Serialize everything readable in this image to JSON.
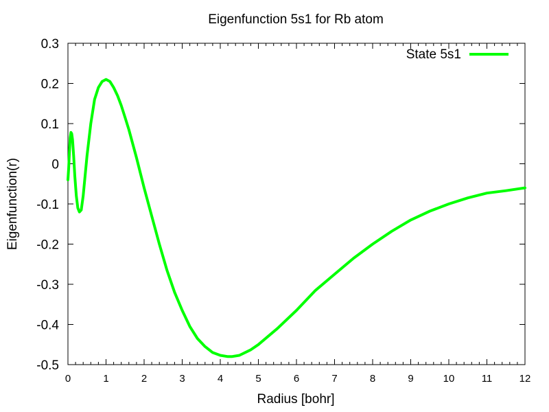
{
  "chart_data": {
    "type": "line",
    "title": "Eigenfunction 5s1 for Rb atom",
    "xlabel": "Radius [bohr]",
    "ylabel": "Eigenfunction(r)",
    "xlim": [
      0,
      12
    ],
    "ylim": [
      -0.5,
      0.3
    ],
    "xticks": [
      0,
      1,
      2,
      3,
      4,
      5,
      6,
      7,
      8,
      9,
      10,
      11,
      12
    ],
    "yticks": [
      -0.5,
      -0.4,
      -0.3,
      -0.2,
      -0.1,
      0,
      0.1,
      0.2,
      0.3
    ],
    "xtick_labels": [
      "0",
      "1",
      "2",
      "3",
      "4",
      "5",
      "6",
      "7",
      "8",
      "9",
      "10",
      "11",
      "12"
    ],
    "ytick_labels": [
      "-0.5",
      "-0.4",
      "-0.3",
      "-0.2",
      "-0.1",
      "0",
      "0.1",
      "0.2",
      "0.3"
    ],
    "grid": false,
    "legend_position": "top-right",
    "series": [
      {
        "name": "State 5s1",
        "color": "#00ff00",
        "x": [
          0.0,
          0.02,
          0.04,
          0.06,
          0.08,
          0.1,
          0.12,
          0.15,
          0.18,
          0.22,
          0.26,
          0.3,
          0.35,
          0.4,
          0.45,
          0.5,
          0.6,
          0.7,
          0.8,
          0.9,
          1.0,
          1.1,
          1.2,
          1.3,
          1.4,
          1.5,
          1.6,
          1.8,
          2.0,
          2.2,
          2.4,
          2.6,
          2.8,
          3.0,
          3.2,
          3.4,
          3.6,
          3.8,
          4.0,
          4.2,
          4.3,
          4.5,
          4.8,
          5.0,
          5.5,
          6.0,
          6.5,
          7.0,
          7.5,
          8.0,
          8.5,
          9.0,
          9.5,
          10.0,
          10.5,
          11.0,
          11.5,
          12.0
        ],
        "y": [
          -0.04,
          -0.01,
          0.03,
          0.065,
          0.078,
          0.075,
          0.06,
          0.02,
          -0.03,
          -0.08,
          -0.11,
          -0.12,
          -0.115,
          -0.08,
          -0.03,
          0.02,
          0.1,
          0.16,
          0.19,
          0.205,
          0.21,
          0.205,
          0.19,
          0.17,
          0.145,
          0.115,
          0.085,
          0.015,
          -0.06,
          -0.13,
          -0.2,
          -0.265,
          -0.32,
          -0.365,
          -0.405,
          -0.435,
          -0.455,
          -0.47,
          -0.477,
          -0.48,
          -0.48,
          -0.477,
          -0.463,
          -0.45,
          -0.41,
          -0.365,
          -0.315,
          -0.275,
          -0.235,
          -0.2,
          -0.168,
          -0.14,
          -0.118,
          -0.1,
          -0.085,
          -0.073,
          -0.067,
          -0.06
        ]
      }
    ]
  }
}
